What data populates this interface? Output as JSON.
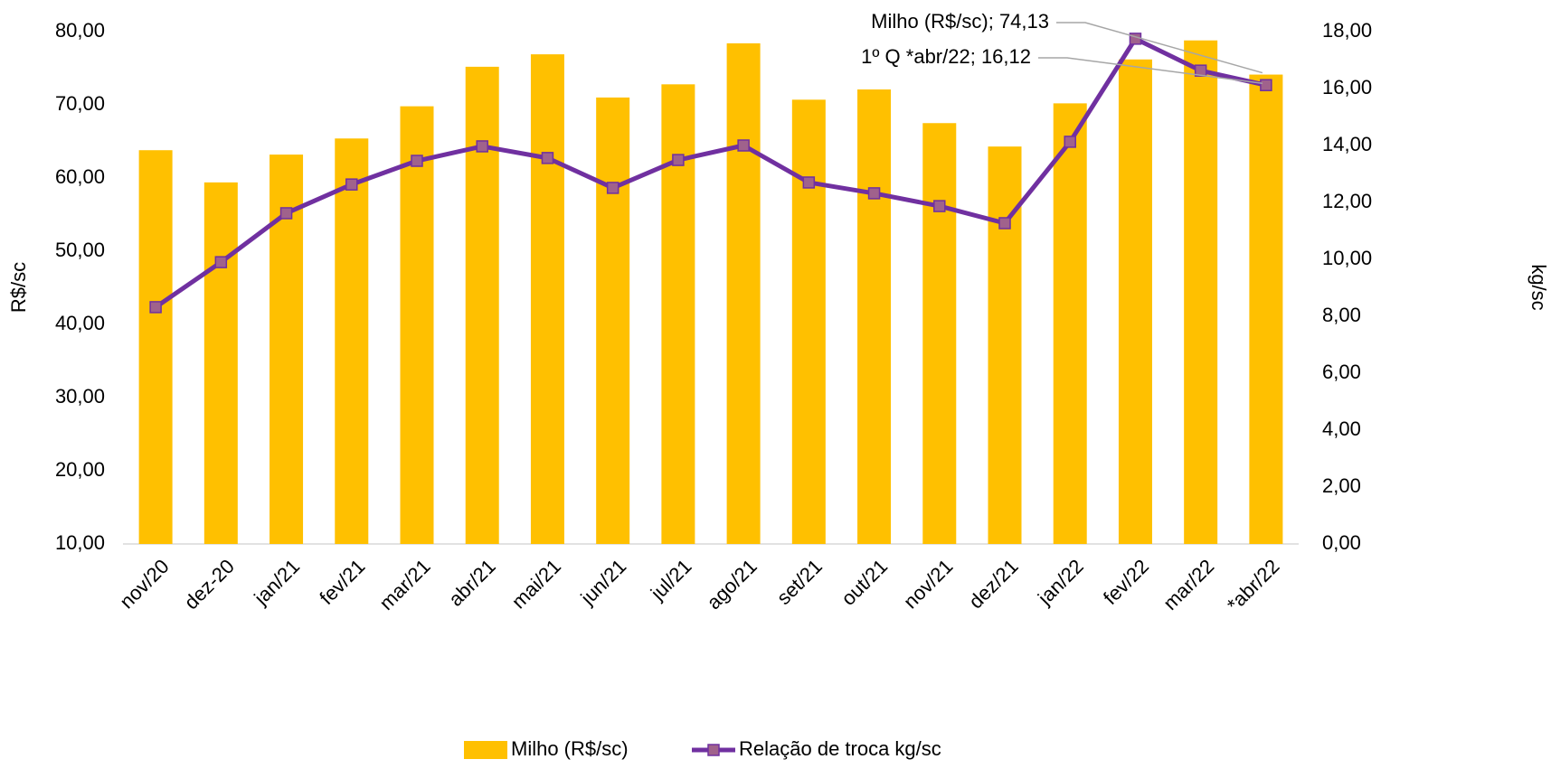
{
  "chart_data": {
    "type": "bar_line",
    "categories": [
      "nov/20",
      "dez-20",
      "jan/21",
      "fev/21",
      "mar/21",
      "abr/21",
      "mai/21",
      "jun/21",
      "jul/21",
      "ago/21",
      "set/21",
      "out/21",
      "nov/21",
      "dez/21",
      "jan/22",
      "fev/22",
      "mar/22",
      "*abr/22"
    ],
    "series": [
      {
        "name": "Milho (R$/sc)",
        "type": "bar",
        "color": "#ffc000",
        "values": [
          63.8,
          59.4,
          63.2,
          65.4,
          69.8,
          75.2,
          76.9,
          71.0,
          72.8,
          78.4,
          70.7,
          72.1,
          67.5,
          64.3,
          70.2,
          76.2,
          78.8,
          74.13
        ]
      },
      {
        "name": "Relação de troca kg/sc",
        "type": "line",
        "axis": "y2",
        "color": "#7030a0",
        "marker_color": "#a0628c",
        "values": [
          8.32,
          9.9,
          11.62,
          12.63,
          13.46,
          13.97,
          13.56,
          12.51,
          13.49,
          14.0,
          12.7,
          12.32,
          11.87,
          11.27,
          14.13,
          17.75,
          16.63,
          16.12
        ]
      }
    ],
    "annotations": [
      "Milho (R$/sc); 74,13",
      "1º Q *abr/22; 16,12"
    ],
    "ylabel": "R$/sc",
    "y2label": "kg/sc",
    "ylim": [
      10,
      80
    ],
    "yticks": [
      {
        "value": 10,
        "label": "10,00"
      },
      {
        "value": 20,
        "label": "20,00"
      },
      {
        "value": 30,
        "label": "30,00"
      },
      {
        "value": 40,
        "label": "40,00"
      },
      {
        "value": 50,
        "label": "50,00"
      },
      {
        "value": 60,
        "label": "60,00"
      },
      {
        "value": 70,
        "label": "70,00"
      },
      {
        "value": 80,
        "label": "80,00"
      }
    ],
    "y2lim": [
      0,
      18
    ],
    "y2ticks": [
      {
        "value": 0,
        "label": "0,00"
      },
      {
        "value": 2,
        "label": "2,00"
      },
      {
        "value": 4,
        "label": "4,00"
      },
      {
        "value": 6,
        "label": "6,00"
      },
      {
        "value": 8,
        "label": "8,00"
      },
      {
        "value": 10,
        "label": "10,00"
      },
      {
        "value": 12,
        "label": "12,00"
      },
      {
        "value": 14,
        "label": "14,00"
      },
      {
        "value": 16,
        "label": "16,00"
      },
      {
        "value": 18,
        "label": "18,00"
      }
    ],
    "grid": false,
    "legend": "bottom"
  }
}
